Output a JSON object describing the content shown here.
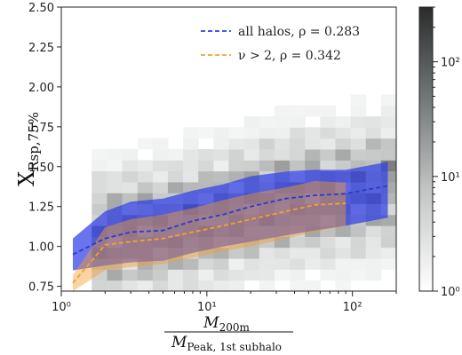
{
  "chart_data": {
    "type": "line",
    "xlabel_main": "M",
    "xlabel_num_sub": "200m",
    "xlabel_den_sub": "Peak, 1st subhalo",
    "ylabel_main": "X",
    "ylabel_sub": "Rsp,75%",
    "xscale": "log",
    "xlim": [
      1,
      200
    ],
    "ylim": [
      0.72,
      2.5
    ],
    "x_ticks": [
      1,
      10,
      100
    ],
    "x_tick_labels": [
      "10⁰",
      "10¹",
      "10²"
    ],
    "y_ticks": [
      0.75,
      1.0,
      1.25,
      1.5,
      1.75,
      2.0,
      2.25,
      2.5
    ],
    "y_tick_labels": [
      "0.75",
      "1.00",
      "1.25",
      "1.50",
      "1.75",
      "2.00",
      "2.25",
      "2.50"
    ],
    "colorbar": {
      "scale": "log",
      "range": [
        1,
        300
      ],
      "ticks": [
        1,
        10,
        100
      ],
      "tick_labels": [
        "10⁰",
        "10¹",
        "10²"
      ]
    },
    "legend_position": "top-right",
    "series": [
      {
        "name": "all halos, ρ = 0.283",
        "color": "#2f3fe6",
        "x": [
          1.2,
          2.0,
          3.0,
          5.0,
          8.0,
          13,
          20,
          35,
          55,
          90,
          175
        ],
        "median": [
          0.95,
          1.05,
          1.09,
          1.1,
          1.16,
          1.2,
          1.25,
          1.3,
          1.32,
          1.33,
          1.38
        ],
        "lower": [
          0.85,
          0.88,
          0.9,
          0.91,
          0.96,
          1.0,
          1.03,
          1.07,
          1.1,
          1.13,
          1.18
        ],
        "upper": [
          1.05,
          1.22,
          1.28,
          1.3,
          1.35,
          1.39,
          1.44,
          1.47,
          1.48,
          1.48,
          1.53
        ]
      },
      {
        "name": "ν > 2, ρ = 0.342",
        "color": "#f5a030",
        "x": [
          1.2,
          2.0,
          3.0,
          5.0,
          8.0,
          13,
          20,
          35,
          55,
          90
        ],
        "median": [
          0.77,
          1.01,
          1.03,
          1.05,
          1.09,
          1.13,
          1.17,
          1.22,
          1.26,
          1.27
        ],
        "lower": [
          0.72,
          0.85,
          0.87,
          0.89,
          0.93,
          0.97,
          1.0,
          1.05,
          1.09,
          1.13
        ],
        "upper": [
          0.82,
          1.12,
          1.17,
          1.2,
          1.24,
          1.29,
          1.33,
          1.37,
          1.41,
          1.4
        ]
      }
    ]
  }
}
